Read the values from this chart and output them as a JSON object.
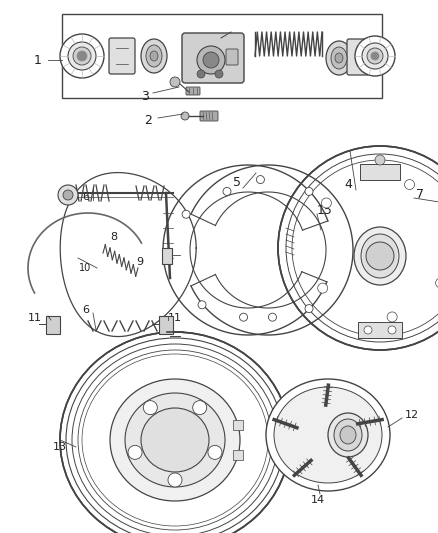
{
  "bg_color": "#ffffff",
  "line_color": "#444444",
  "label_fontsize": 8,
  "label_color": "#222222",
  "fig_w": 4.38,
  "fig_h": 5.33,
  "dpi": 100
}
